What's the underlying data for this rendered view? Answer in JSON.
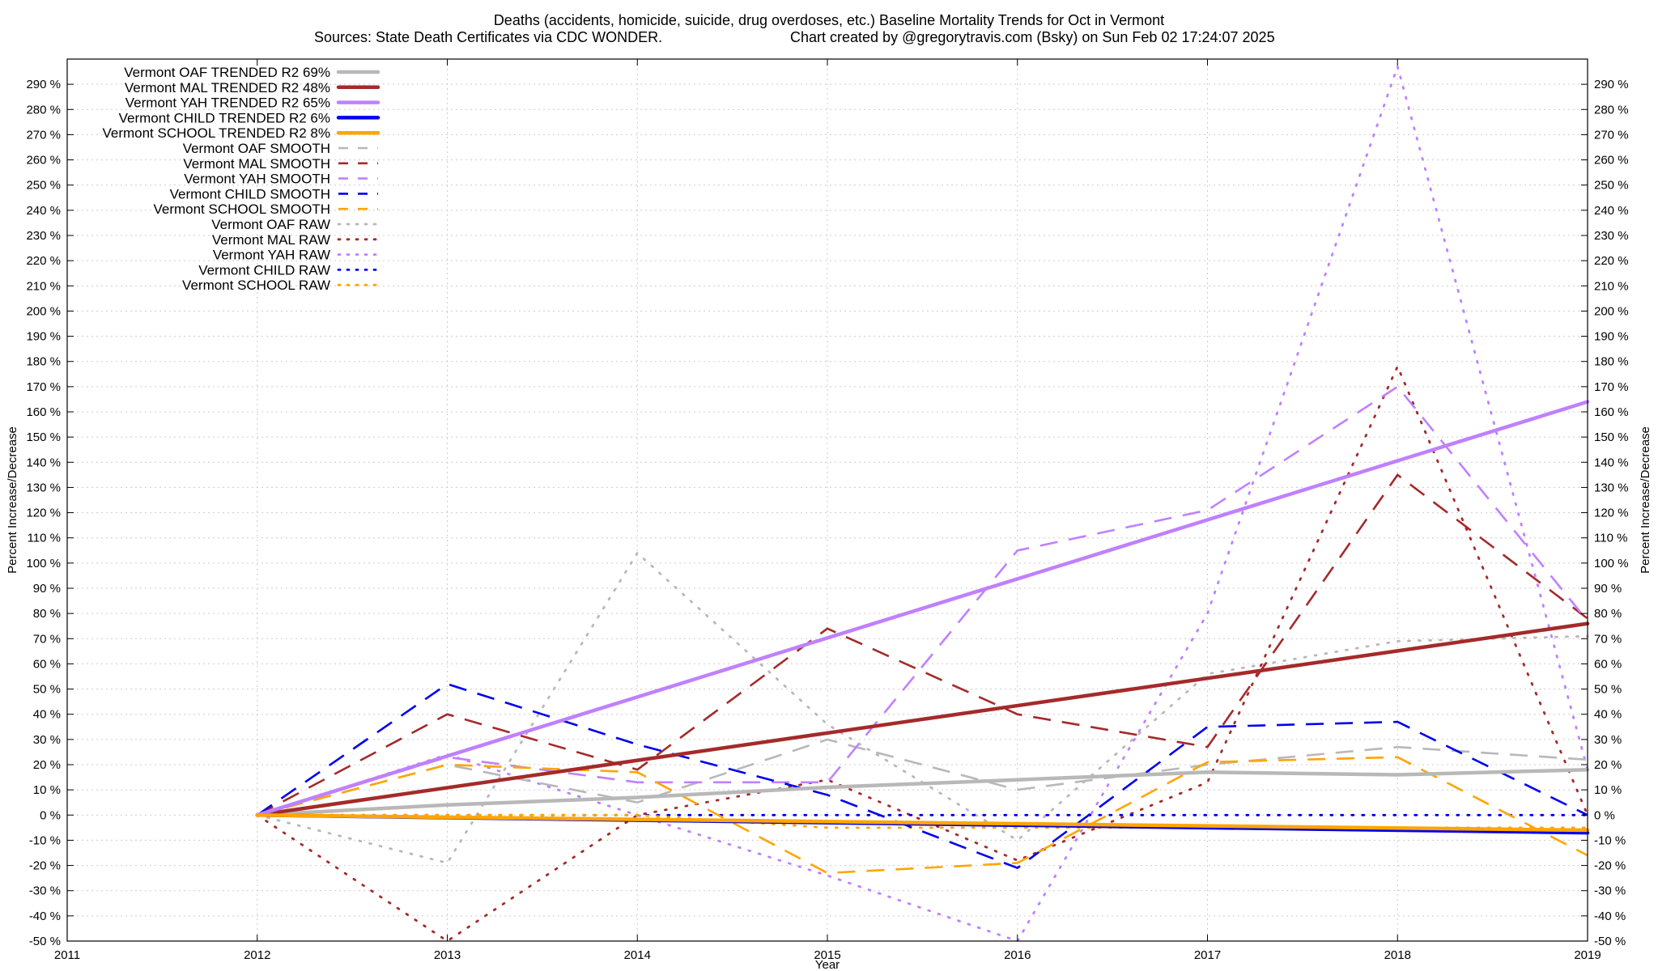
{
  "chart_data": {
    "type": "line",
    "title": "Deaths (accidents, homicide, suicide, drug overdoses, etc.)  Baseline Mortality Trends for Oct in Vermont",
    "subtitle_left": "Sources: State Death Certificates via CDC WONDER.",
    "subtitle_right": "Chart created by @gregorytravis.com (Bsky) on Sun Feb 02 17:24:07 2025",
    "xlabel": "Year",
    "ylabel": "Percent Increase/Decrease",
    "ylabel_right": "Percent Increase/Decrease",
    "xlim": [
      2011,
      2019
    ],
    "ylim": [
      -50,
      300
    ],
    "x_ticks": [
      2011,
      2012,
      2013,
      2014,
      2015,
      2016,
      2017,
      2018,
      2019
    ],
    "x_tick_labels": [
      "2011",
      "2012",
      "2013",
      "2014",
      "2015",
      "2016",
      "2017",
      "2018",
      "2019"
    ],
    "y_ticks": [
      -50,
      -40,
      -30,
      -20,
      -10,
      0,
      10,
      20,
      30,
      40,
      50,
      60,
      70,
      80,
      90,
      100,
      110,
      120,
      130,
      140,
      150,
      160,
      170,
      180,
      190,
      200,
      210,
      220,
      230,
      240,
      250,
      260,
      270,
      280,
      290
    ],
    "y_tick_labels": [
      "-50 %",
      "-40 %",
      "-30 %",
      "-20 %",
      "-10 %",
      "0 %",
      "10 %",
      "20 %",
      "30 %",
      "40 %",
      "50 %",
      "60 %",
      "70 %",
      "80 %",
      "90 %",
      "100 %",
      "110 %",
      "120 %",
      "130 %",
      "140 %",
      "150 %",
      "160 %",
      "170 %",
      "180 %",
      "190 %",
      "200 %",
      "210 %",
      "220 %",
      "230 %",
      "240 %",
      "250 %",
      "260 %",
      "270 %",
      "280 %",
      "290 %"
    ],
    "grid": true,
    "legend_position": "top-left",
    "series": [
      {
        "name": "Vermont OAF TRENDED R2  69%",
        "style": "solid",
        "color": "#b8b8b8",
        "x": [
          2012,
          2013,
          2014,
          2015,
          2016,
          2017,
          2018,
          2019
        ],
        "y": [
          0,
          4,
          7,
          11,
          14,
          17,
          16,
          18
        ]
      },
      {
        "name": "Vermont MAL TRENDED R2  48%",
        "style": "solid",
        "color": "#a52a2a",
        "x": [
          2012,
          2019
        ],
        "y": [
          0,
          76
        ]
      },
      {
        "name": "Vermont YAH TRENDED R2  65%",
        "style": "solid",
        "color": "#c080ff",
        "x": [
          2012,
          2019
        ],
        "y": [
          0,
          164
        ]
      },
      {
        "name": "Vermont CHILD TRENDED R2   6%",
        "style": "solid",
        "color": "#0000ee",
        "x": [
          2012,
          2019
        ],
        "y": [
          0,
          -7
        ]
      },
      {
        "name": "Vermont SCHOOL TRENDED R2   8%",
        "style": "solid",
        "color": "#ffa500",
        "x": [
          2012,
          2019
        ],
        "y": [
          0,
          -6
        ]
      },
      {
        "name": "Vermont OAF SMOOTH",
        "style": "dashed",
        "color": "#b8b8b8",
        "x": [
          2012,
          2013,
          2014,
          2015,
          2016,
          2017,
          2018,
          2019
        ],
        "y": [
          0,
          20,
          5,
          30,
          10,
          20,
          27,
          22
        ]
      },
      {
        "name": "Vermont MAL SMOOTH",
        "style": "dashed",
        "color": "#a52a2a",
        "x": [
          2012,
          2013,
          2014,
          2015,
          2016,
          2017,
          2018,
          2019
        ],
        "y": [
          0,
          40,
          18,
          74,
          40,
          27,
          135,
          78
        ]
      },
      {
        "name": "Vermont YAH SMOOTH",
        "style": "dashed",
        "color": "#c080ff",
        "x": [
          2012,
          2013,
          2014,
          2015,
          2016,
          2017,
          2018,
          2019
        ],
        "y": [
          0,
          23,
          13,
          13,
          105,
          121,
          170,
          77
        ]
      },
      {
        "name": "Vermont CHILD SMOOTH",
        "style": "dashed",
        "color": "#0000ee",
        "x": [
          2012,
          2013,
          2014,
          2015,
          2016,
          2017,
          2018,
          2019
        ],
        "y": [
          0,
          52,
          28,
          8,
          -21,
          35,
          37,
          0
        ]
      },
      {
        "name": "Vermont SCHOOL SMOOTH",
        "style": "dashed",
        "color": "#ffa500",
        "x": [
          2012,
          2013,
          2014,
          2015,
          2016,
          2017,
          2018,
          2019
        ],
        "y": [
          0,
          20,
          17,
          -23,
          -19,
          21,
          23,
          -16
        ]
      },
      {
        "name": "Vermont OAF RAW",
        "style": "dotted",
        "color": "#b8b8b8",
        "x": [
          2012,
          2013,
          2014,
          2015,
          2016,
          2017,
          2018,
          2019
        ],
        "y": [
          0,
          -19,
          104,
          36,
          -10,
          56,
          69,
          71
        ]
      },
      {
        "name": "Vermont MAL RAW",
        "style": "dotted",
        "color": "#a52a2a",
        "x": [
          2012,
          2013,
          2014,
          2015,
          2016,
          2017,
          2018,
          2019
        ],
        "y": [
          0,
          -50,
          0,
          14,
          -18,
          13,
          178,
          0
        ]
      },
      {
        "name": "Vermont YAH RAW",
        "style": "dotted",
        "color": "#c080ff",
        "x": [
          2012,
          2013,
          2014,
          2015,
          2016,
          2017,
          2018,
          2019
        ],
        "y": [
          0,
          24,
          0,
          -24,
          -50,
          80,
          297,
          18
        ]
      },
      {
        "name": "Vermont CHILD RAW",
        "style": "dotted",
        "color": "#0000ee",
        "x": [
          2012,
          2013,
          2014,
          2015,
          2016,
          2017,
          2018,
          2019
        ],
        "y": [
          0,
          0,
          0,
          0,
          0,
          0,
          0,
          0
        ]
      },
      {
        "name": "Vermont SCHOOL RAW",
        "style": "dotted",
        "color": "#ffa500",
        "x": [
          2012,
          2013,
          2014,
          2015,
          2016,
          2017,
          2018,
          2019
        ],
        "y": [
          0,
          0,
          0,
          -5,
          -5,
          -5,
          -5,
          -5
        ]
      }
    ]
  }
}
